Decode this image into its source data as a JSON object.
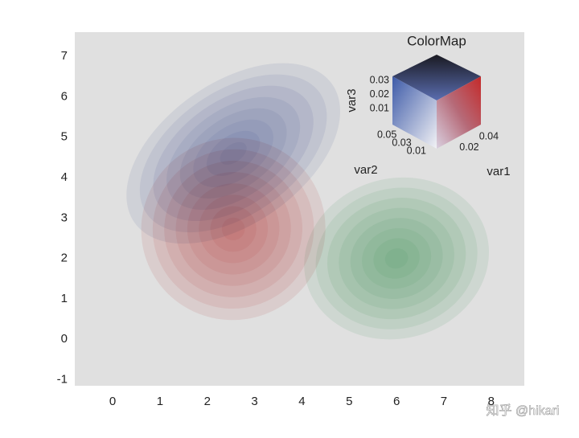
{
  "chart_data": {
    "type": "contour",
    "xlim": [
      -0.8,
      8.7
    ],
    "ylim": [
      -1.15,
      7.6
    ],
    "xticks": [
      0,
      1,
      2,
      3,
      4,
      5,
      6,
      7,
      8
    ],
    "yticks": [
      -1,
      0,
      1,
      2,
      3,
      4,
      5,
      6,
      7
    ],
    "background": "#e0e0e0",
    "levels": 8,
    "distributions": [
      {
        "color": "#4f64a8",
        "center": [
          2.55,
          4.6
        ],
        "radii": [
          2.55,
          1.75
        ],
        "angle": -35
      },
      {
        "color": "#c83c3c",
        "center": [
          2.55,
          2.73
        ],
        "radii": [
          1.95,
          2.25
        ],
        "angle": -20
      },
      {
        "color": "#45a062",
        "center": [
          6.0,
          2.0
        ],
        "radii": [
          1.97,
          1.98
        ],
        "angle": -15
      }
    ],
    "colormap": {
      "title": "ColorMap",
      "var1_label": "var1",
      "var2_label": "var2",
      "var3_label": "var3",
      "var1lim": [
        0,
        0.045
      ],
      "var2lim": [
        0,
        0.06
      ],
      "var3lim": [
        0,
        0.033
      ],
      "var1ticks": [
        0.02,
        0.04
      ],
      "var2ticks": [
        0.01,
        0.03,
        0.05
      ],
      "var3ticks": [
        0.01,
        0.02,
        0.03
      ]
    },
    "watermark": "知乎 @hikari"
  }
}
